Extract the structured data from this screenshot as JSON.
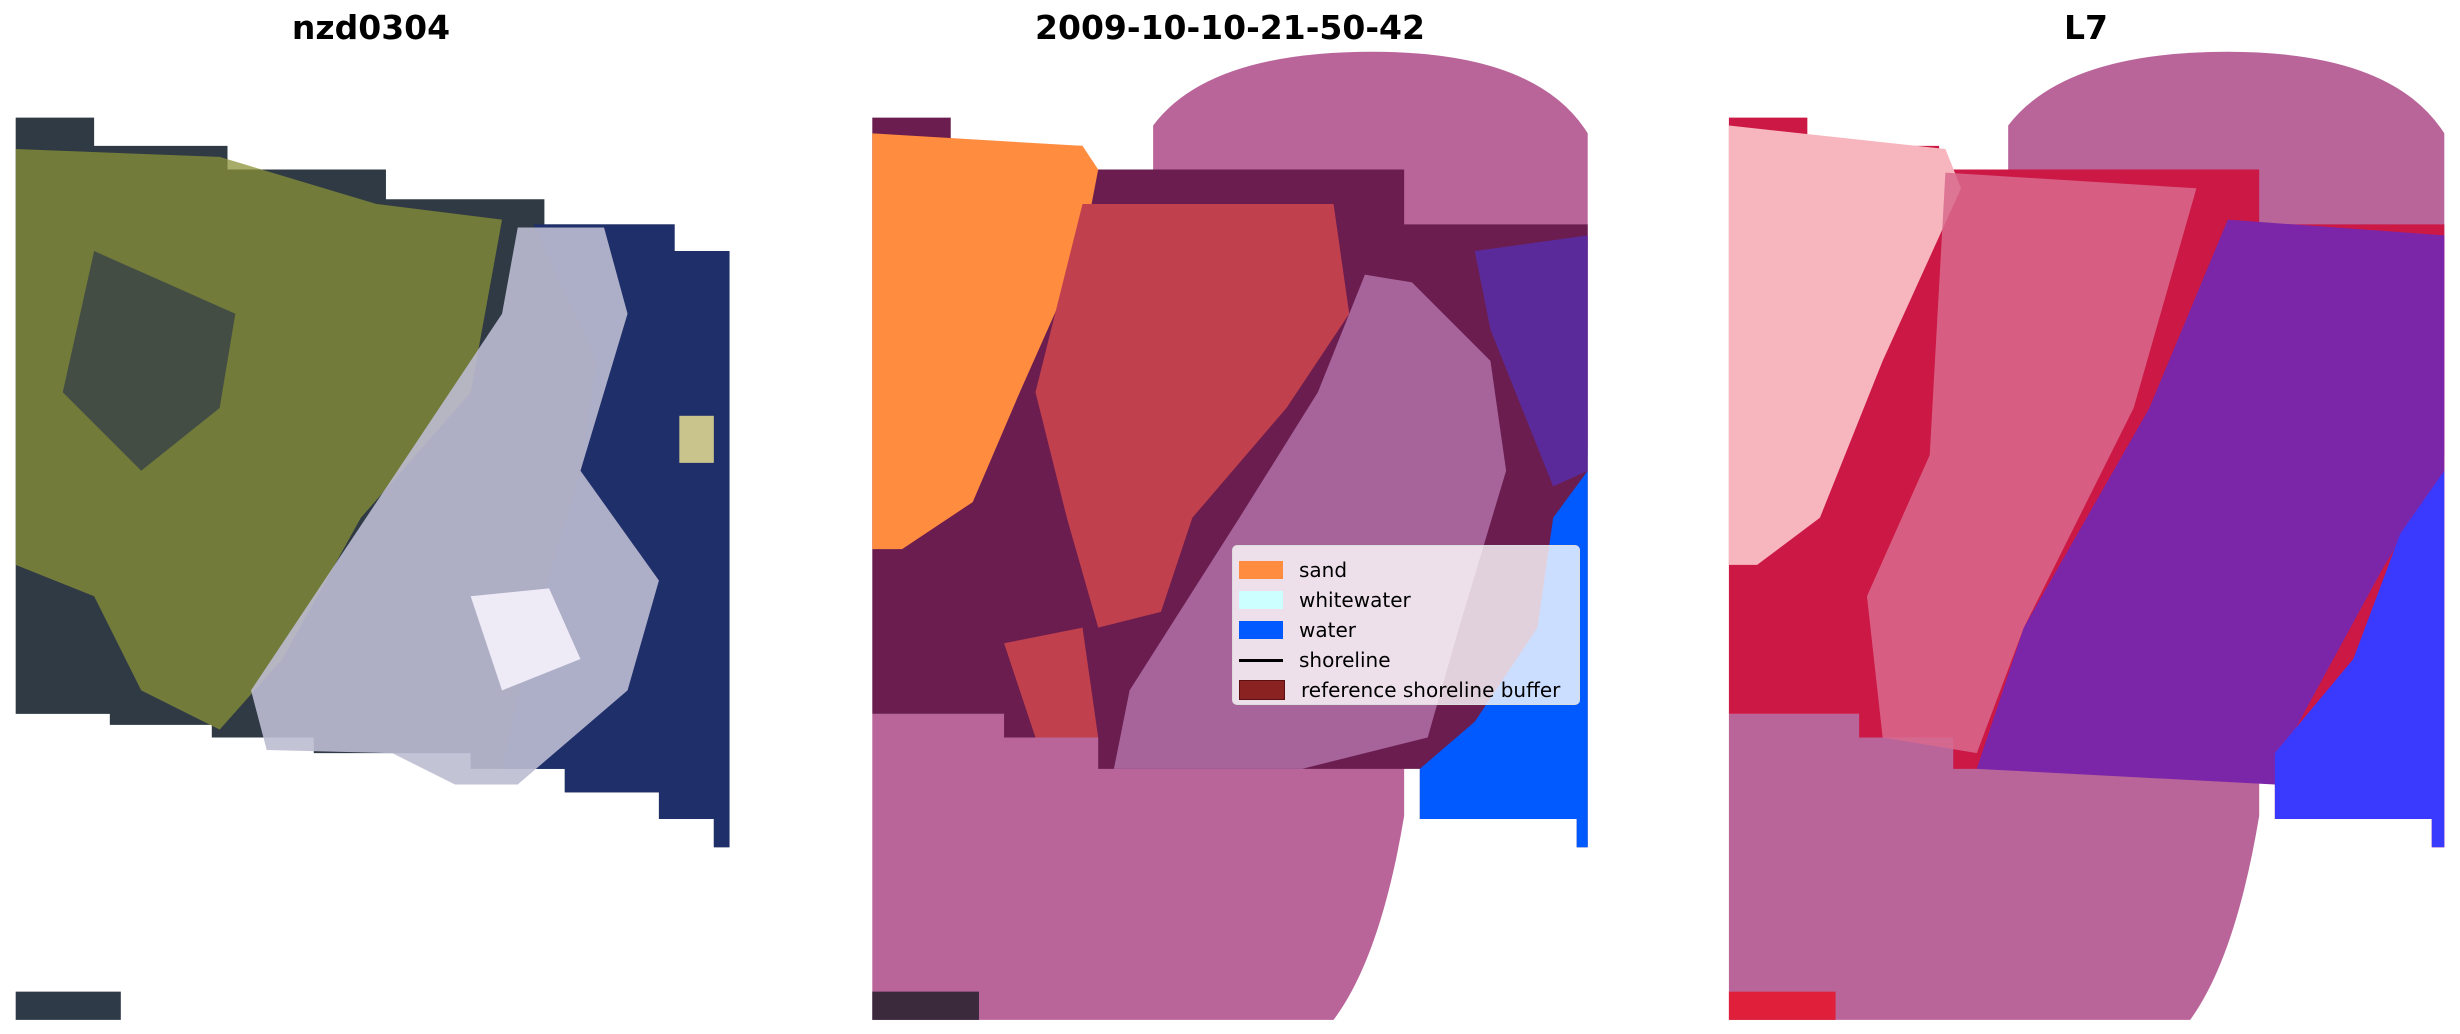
{
  "panels": [
    {
      "title": "nzd0304"
    },
    {
      "title": "2009-10-10-21-50-42"
    },
    {
      "title": "L7"
    }
  ],
  "legend": {
    "items": [
      {
        "label": "sand",
        "color": "#ff8c3f",
        "kind": "patch"
      },
      {
        "label": "whitewater",
        "color": "#ccffff",
        "kind": "patch"
      },
      {
        "label": "water",
        "color": "#005aff",
        "kind": "patch"
      },
      {
        "label": "shoreline",
        "color": "#000000",
        "kind": "line"
      },
      {
        "label": "reference shoreline buffer",
        "color": "#8b2222",
        "kind": "patch"
      }
    ]
  },
  "colors": {
    "buffer_mask": "#b9659a",
    "sand": "#ff8c3f",
    "water": "#005aff",
    "whitewater": "#ccffff"
  }
}
